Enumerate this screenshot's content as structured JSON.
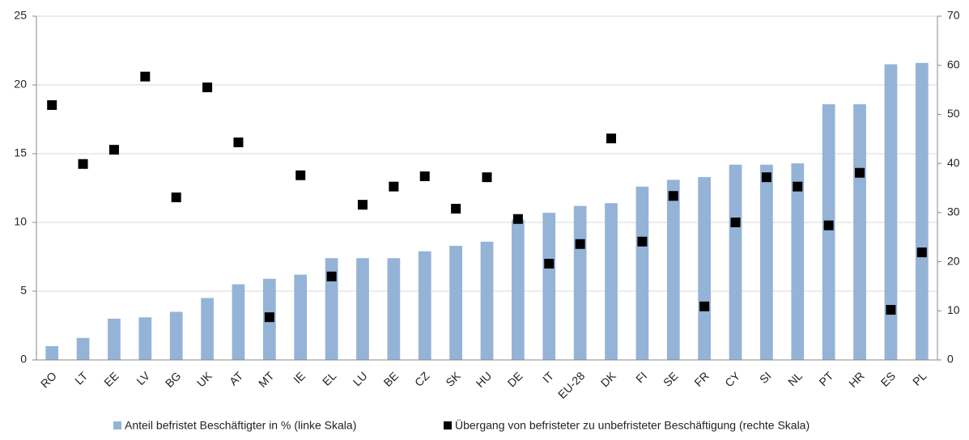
{
  "chart_data": {
    "type": "bar-scatter",
    "categories": [
      "RO",
      "LT",
      "EE",
      "LV",
      "BG",
      "UK",
      "AT",
      "MT",
      "IE",
      "EL",
      "LU",
      "BE",
      "CZ",
      "SK",
      "HU",
      "DE",
      "IT",
      "EU-28",
      "DK",
      "FI",
      "SE",
      "FR",
      "CY",
      "SI",
      "NL",
      "PT",
      "HR",
      "ES",
      "PL"
    ],
    "series": [
      {
        "name": "Anteil befristet Beschäftigter in % (linke Skala)",
        "color": "#95b3d7",
        "type": "bar",
        "values": [
          1.0,
          1.6,
          3.0,
          3.1,
          3.5,
          4.5,
          5.5,
          5.9,
          6.2,
          7.4,
          7.4,
          7.4,
          7.9,
          8.3,
          8.6,
          10.2,
          10.7,
          11.2,
          11.4,
          12.6,
          13.1,
          13.3,
          14.2,
          14.2,
          14.3,
          18.6,
          18.6,
          21.5,
          21.6
        ]
      },
      {
        "name": "Übergang von befristeter zu unbefristeter Beschäftigung (rechte Skala)",
        "color": "#000000",
        "type": "scatter",
        "axis": "y2",
        "values": [
          51.9,
          39.9,
          42.8,
          57.7,
          33.1,
          55.5,
          44.3,
          8.7,
          37.6,
          17.0,
          31.6,
          35.3,
          37.4,
          30.8,
          37.2,
          28.7,
          19.6,
          23.6,
          45.1,
          24.1,
          33.4,
          10.9,
          28.0,
          37.2,
          35.3,
          27.4,
          38.1,
          10.2,
          21.9
        ]
      }
    ],
    "ylim": [
      0,
      25
    ],
    "yticks": [
      0,
      5,
      10,
      15,
      20,
      25
    ],
    "y2lim": [
      0,
      70
    ],
    "y2ticks": [
      0,
      10,
      20,
      30,
      40,
      50,
      60,
      70
    ],
    "grid": true,
    "legend": "bottom"
  }
}
